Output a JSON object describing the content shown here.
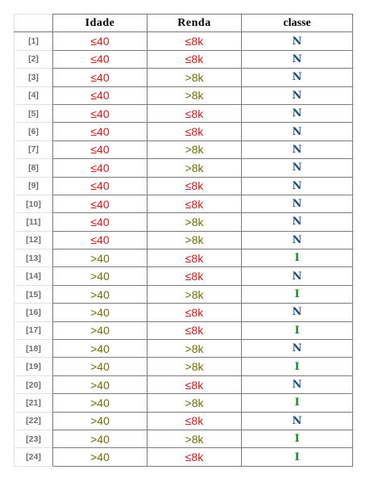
{
  "headers": {
    "idade": "Idade",
    "renda": "Renda",
    "classe": "classe"
  },
  "colors": {
    "le": "#c41e1e",
    "gt": "#6f6d0c",
    "N": "#1f4f7a",
    "I": "#1c8a2a"
  },
  "rows": [
    {
      "idx": "[1]",
      "idade": "≤40",
      "renda": "≤8k",
      "classe": "N"
    },
    {
      "idx": "[2]",
      "idade": "≤40",
      "renda": "≤8k",
      "classe": "N"
    },
    {
      "idx": "[3]",
      "idade": "≤40",
      "renda": ">8k",
      "classe": "N"
    },
    {
      "idx": "[4]",
      "idade": "≤40",
      "renda": ">8k",
      "classe": "N"
    },
    {
      "idx": "[5]",
      "idade": "≤40",
      "renda": "≤8k",
      "classe": "N"
    },
    {
      "idx": "[6]",
      "idade": "≤40",
      "renda": "≤8k",
      "classe": "N"
    },
    {
      "idx": "[7]",
      "idade": "≤40",
      "renda": ">8k",
      "classe": "N"
    },
    {
      "idx": "[8]",
      "idade": "≤40",
      "renda": ">8k",
      "classe": "N"
    },
    {
      "idx": "[9]",
      "idade": "≤40",
      "renda": "≤8k",
      "classe": "N"
    },
    {
      "idx": "[10]",
      "idade": "≤40",
      "renda": "≤8k",
      "classe": "N"
    },
    {
      "idx": "[11]",
      "idade": "≤40",
      "renda": ">8k",
      "classe": "N"
    },
    {
      "idx": "[12]",
      "idade": "≤40",
      "renda": ">8k",
      "classe": "N"
    },
    {
      "idx": "[13]",
      "idade": ">40",
      "renda": "≤8k",
      "classe": "I"
    },
    {
      "idx": "[14]",
      "idade": ">40",
      "renda": "≤8k",
      "classe": "N"
    },
    {
      "idx": "[15]",
      "idade": ">40",
      "renda": ">8k",
      "classe": "I"
    },
    {
      "idx": "[16]",
      "idade": ">40",
      "renda": "≤8k",
      "classe": "N"
    },
    {
      "idx": "[17]",
      "idade": ">40",
      "renda": "≤8k",
      "classe": "I"
    },
    {
      "idx": "[18]",
      "idade": ">40",
      "renda": ">8k",
      "classe": "N"
    },
    {
      "idx": "[19]",
      "idade": ">40",
      "renda": ">8k",
      "classe": "I"
    },
    {
      "idx": "[20]",
      "idade": ">40",
      "renda": "≤8k",
      "classe": "N"
    },
    {
      "idx": "[21]",
      "idade": ">40",
      "renda": ">8k",
      "classe": "I"
    },
    {
      "idx": "[22]",
      "idade": ">40",
      "renda": "≤8k",
      "classe": "N"
    },
    {
      "idx": "[23]",
      "idade": ">40",
      "renda": ">8k",
      "classe": "I"
    },
    {
      "idx": "[24]",
      "idade": ">40",
      "renda": "≤8k",
      "classe": "I"
    }
  ]
}
